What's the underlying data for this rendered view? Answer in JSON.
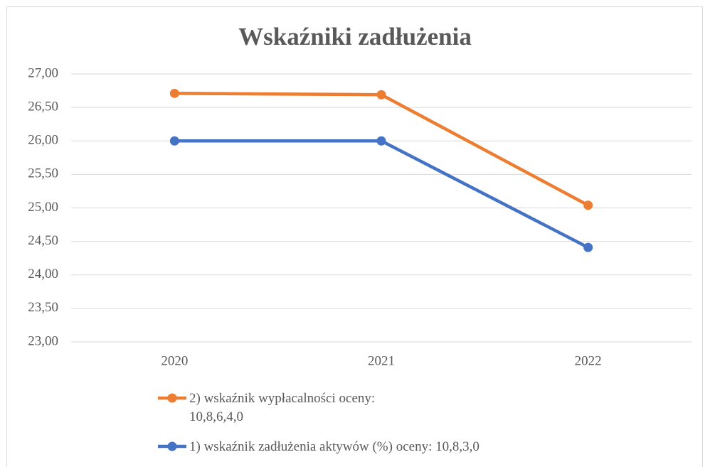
{
  "chart_data": {
    "type": "line",
    "title": "Wskaźniki zadłużenia",
    "categories": [
      "2020",
      "2021",
      "2022"
    ],
    "series": [
      {
        "name": "2) wskaźnik wypłacalności oceny: 10,8,6,4,0",
        "color": "#ed7d31",
        "values": [
          26.71,
          26.69,
          25.04
        ]
      },
      {
        "name": "1) wskaźnik zadłużenia aktywów (%) oceny: 10,8,3,0",
        "color": "#4472c4",
        "values": [
          26.0,
          26.0,
          24.41
        ]
      }
    ],
    "ylim": [
      23,
      27
    ],
    "yticks": [
      {
        "value": 23,
        "label": "23,00"
      },
      {
        "value": 23.5,
        "label": "23,50"
      },
      {
        "value": 24,
        "label": "24,00"
      },
      {
        "value": 24.5,
        "label": "24,50"
      },
      {
        "value": 25,
        "label": "25,00"
      },
      {
        "value": 25.5,
        "label": "25,50"
      },
      {
        "value": 26,
        "label": "26,00"
      },
      {
        "value": 26.5,
        "label": "26,50"
      },
      {
        "value": 27,
        "label": "27,00"
      }
    ],
    "grid": true,
    "legend": "bottom"
  }
}
